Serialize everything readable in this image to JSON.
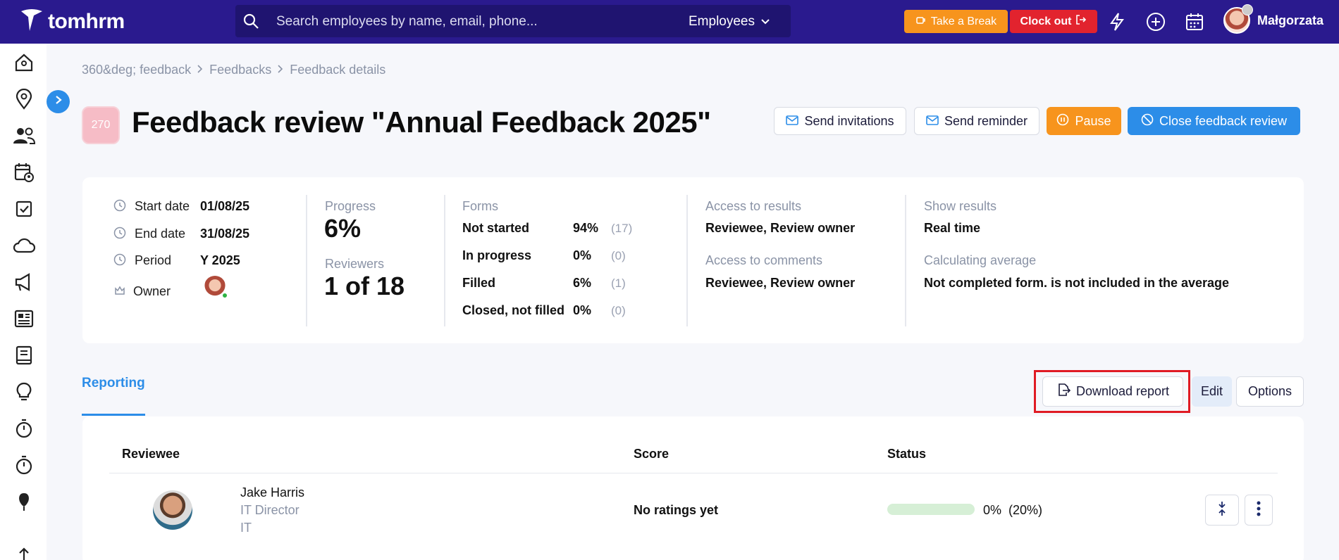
{
  "app": {
    "name": "tomhrm"
  },
  "search": {
    "placeholder": "Search employees by name, email, phone...",
    "scope": "Employees"
  },
  "topbar": {
    "take_break": "Take a Break",
    "clock_out": "Clock out",
    "user_name": "Małgorzata"
  },
  "breadcrumb": [
    "360&deg; feedback",
    "Feedbacks",
    "Feedback details"
  ],
  "title": {
    "badge": "270",
    "text": "Feedback review \"Annual Feedback 2025\""
  },
  "actions": {
    "send_invitations": "Send invitations",
    "send_reminder": "Send reminder",
    "pause": "Pause",
    "close_review": "Close feedback review"
  },
  "summary": {
    "dates": [
      {
        "label": "Start date",
        "value": "01/08/25"
      },
      {
        "label": "End date",
        "value": "31/08/25"
      },
      {
        "label": "Period",
        "value": "Y 2025"
      }
    ],
    "owner_label": "Owner",
    "progress_label": "Progress",
    "progress_value": "6%",
    "reviewers_label": "Reviewers",
    "reviewers_value": "1 of 18",
    "forms_label": "Forms",
    "forms": [
      {
        "label": "Not started",
        "pct": "94%",
        "count": "(17)"
      },
      {
        "label": "In progress",
        "pct": "0%",
        "count": "(0)"
      },
      {
        "label": "Filled",
        "pct": "6%",
        "count": "(1)"
      },
      {
        "label": "Closed, not filled",
        "pct": "0%",
        "count": "(0)"
      }
    ],
    "access_results_label": "Access to results",
    "access_results_value": "Reviewee, Review owner",
    "access_comments_label": "Access to comments",
    "access_comments_value": "Reviewee, Review owner",
    "show_results_label": "Show results",
    "show_results_value": "Real time",
    "calc_avg_label": "Calculating average",
    "calc_avg_value": "Not completed form. is not included in the average"
  },
  "tabs": {
    "reporting": "Reporting"
  },
  "report_actions": {
    "download": "Download report",
    "edit": "Edit",
    "options": "Options"
  },
  "table": {
    "headers": {
      "reviewee": "Reviewee",
      "score": "Score",
      "status": "Status"
    },
    "rows": [
      {
        "name": "Jake Harris",
        "title": "IT Director",
        "dept": "IT",
        "score": "No ratings yet",
        "progress": 0,
        "progress_text": "0%",
        "progress_extra": "(20%)"
      }
    ]
  }
}
